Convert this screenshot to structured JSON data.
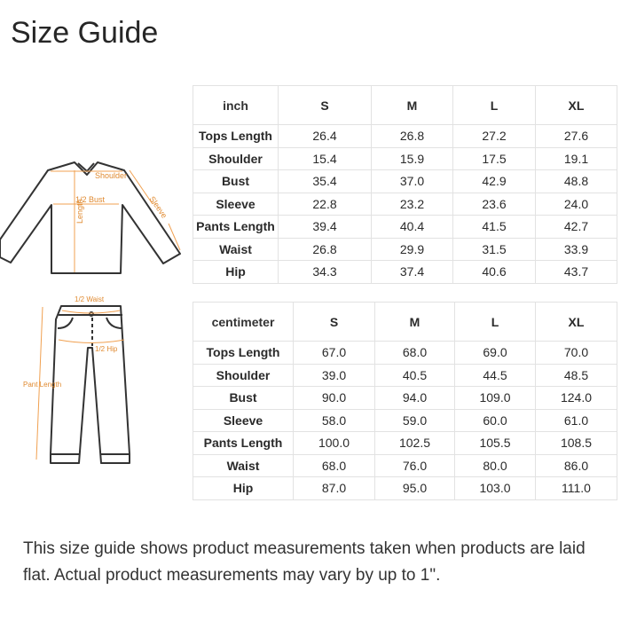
{
  "title": "Size Guide",
  "columns": [
    "S",
    "M",
    "L",
    "XL"
  ],
  "inch_table": {
    "unit": "inch",
    "rows": [
      {
        "label": "Tops Length",
        "values": [
          "26.4",
          "26.8",
          "27.2",
          "27.6"
        ]
      },
      {
        "label": "Shoulder",
        "values": [
          "15.4",
          "15.9",
          "17.5",
          "19.1"
        ]
      },
      {
        "label": "Bust",
        "values": [
          "35.4",
          "37.0",
          "42.9",
          "48.8"
        ]
      },
      {
        "label": "Sleeve",
        "values": [
          "22.8",
          "23.2",
          "23.6",
          "24.0"
        ]
      },
      {
        "label": "Pants Length",
        "values": [
          "39.4",
          "40.4",
          "41.5",
          "42.7"
        ]
      },
      {
        "label": "Waist",
        "values": [
          "26.8",
          "29.9",
          "31.5",
          "33.9"
        ]
      },
      {
        "label": "Hip",
        "values": [
          "34.3",
          "37.4",
          "40.6",
          "43.7"
        ]
      }
    ]
  },
  "cm_table": {
    "unit": "centimeter",
    "rows": [
      {
        "label": "Tops Length",
        "values": [
          "67.0",
          "68.0",
          "69.0",
          "70.0"
        ]
      },
      {
        "label": "Shoulder",
        "values": [
          "39.0",
          "40.5",
          "44.5",
          "48.5"
        ]
      },
      {
        "label": "Bust",
        "values": [
          "90.0",
          "94.0",
          "109.0",
          "124.0"
        ]
      },
      {
        "label": "Sleeve",
        "values": [
          "58.0",
          "59.0",
          "60.0",
          "61.0"
        ]
      },
      {
        "label": "Pants Length",
        "values": [
          "100.0",
          "102.5",
          "105.5",
          "108.5"
        ]
      },
      {
        "label": "Waist",
        "values": [
          "68.0",
          "76.0",
          "80.0",
          "86.0"
        ]
      },
      {
        "label": "Hip",
        "values": [
          "87.0",
          "95.0",
          "103.0",
          "111.0"
        ]
      }
    ]
  },
  "diagram": {
    "shirt_labels": {
      "shoulder": "Shoulder",
      "bust": "1/2 Bust",
      "length": "Length",
      "sleeve": "Sleeve"
    },
    "pants_labels": {
      "waist": "1/2 Waist",
      "hip": "1/2 Hip",
      "length": "Pant Length"
    },
    "accent_color": "#f0a050"
  },
  "note": "This size guide shows product measurements taken when products are laid flat. Actual product measurements may vary by up to 1\"."
}
